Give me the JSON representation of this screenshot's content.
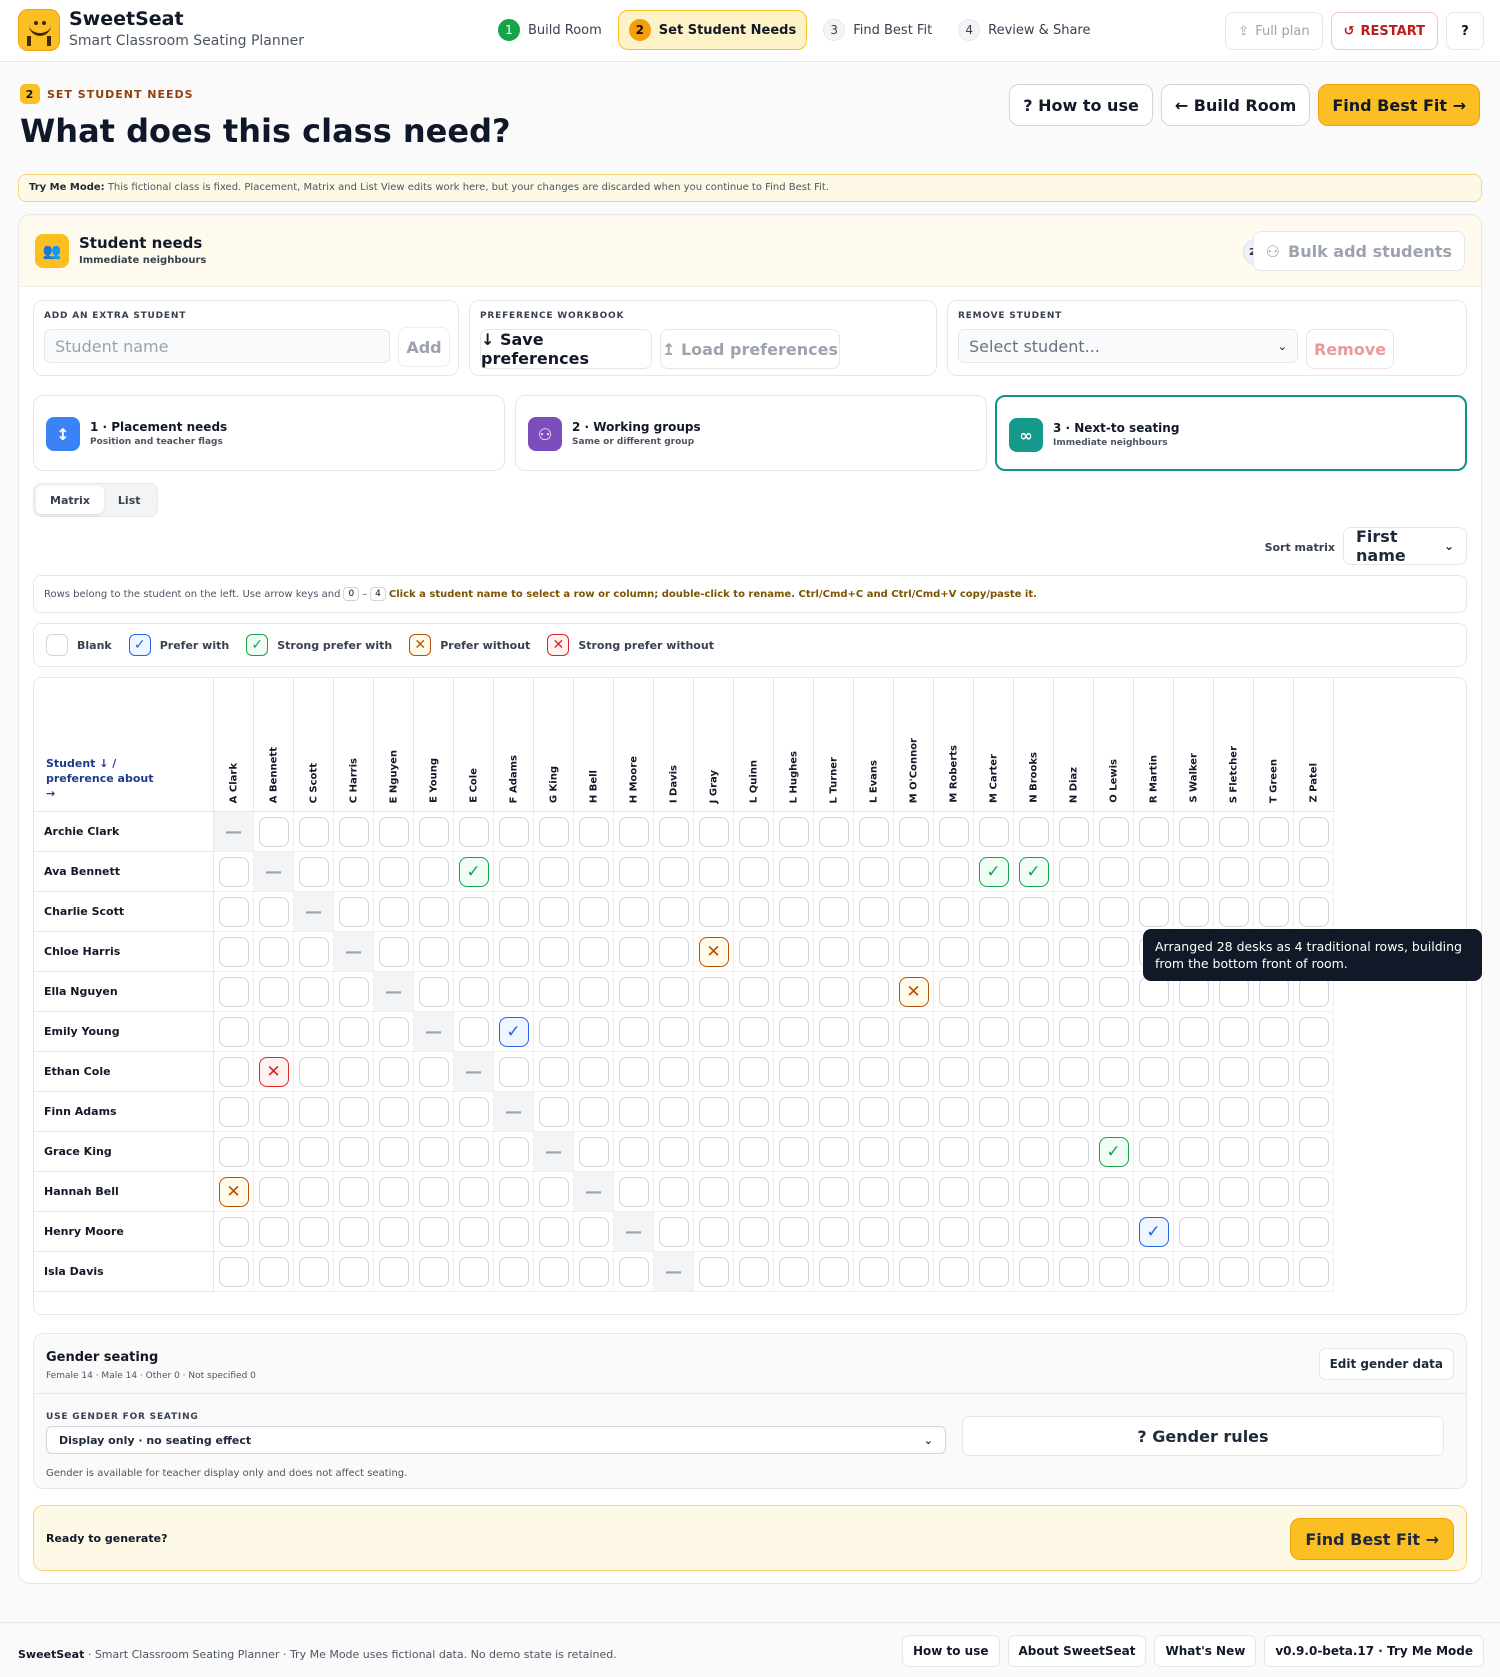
{
  "app": {
    "name": "SweetSeat",
    "tagline": "Smart Classroom Seating Planner"
  },
  "steps": [
    {
      "num": "1",
      "label": "Build Room",
      "state": "done"
    },
    {
      "num": "2",
      "label": "Set Student Needs",
      "state": "active"
    },
    {
      "num": "3",
      "label": "Find Best Fit",
      "state": "todo"
    },
    {
      "num": "4",
      "label": "Review & Share",
      "state": "todo"
    }
  ],
  "header_buttons": {
    "full_plan": "Full plan",
    "restart": "RESTART",
    "help": "?"
  },
  "page": {
    "step_num": "2",
    "eyebrow": "SET STUDENT NEEDS",
    "title": "What does this class need?"
  },
  "top_buttons": {
    "how": "? How to use",
    "back": "← Build Room",
    "next": "Find Best Fit →"
  },
  "notice": {
    "bold": "Try Me Mode:",
    "text": " This fictional class is fixed. Placement, Matrix and List View edits work here, but your changes are discarded when you continue to Find Best Fit."
  },
  "panel": {
    "title": "Student needs",
    "subtitle": "Immediate neighbours",
    "count": "28",
    "bulk": "Bulk add students"
  },
  "add_student": {
    "label": "ADD AN EXTRA STUDENT",
    "placeholder": "Student name",
    "button": "Add"
  },
  "workbook": {
    "label": "PREFERENCE WORKBOOK",
    "save": "↓ Save preferences",
    "load": "↥ Load preferences"
  },
  "remove": {
    "label": "REMOVE STUDENT",
    "placeholder": "Select student...",
    "button": "Remove"
  },
  "sections": [
    {
      "title": "1 · Placement needs",
      "subtitle": "Position and teacher flags",
      "icon": "↕",
      "color": "#3b82f6"
    },
    {
      "title": "2 · Working groups",
      "subtitle": "Same or different group",
      "icon": "⚇",
      "color": "#7c4dbd"
    },
    {
      "title": "3 · Next-to seating",
      "subtitle": "Immediate neighbours",
      "icon": "∞",
      "color": "#14998a"
    }
  ],
  "view_toggle": {
    "matrix": "Matrix",
    "list": "List"
  },
  "sort": {
    "label": "Sort matrix",
    "value": "First name"
  },
  "tip": {
    "text1": "Rows belong to the student on the left. Use arrow keys and",
    "k1": "0",
    "dash": "–",
    "k2": "4",
    "bold": "Click a student name to select a row or column; double-click to rename. Ctrl/Cmd+C and Ctrl/Cmd+V copy/paste it."
  },
  "legend": [
    {
      "label": "Blank",
      "cls": "",
      "glyph": ""
    },
    {
      "label": "Prefer with",
      "cls": "pw",
      "glyph": "✓"
    },
    {
      "label": "Strong prefer with",
      "cls": "sp",
      "glyph": "✓"
    },
    {
      "label": "Prefer without",
      "cls": "pwo",
      "glyph": "✕"
    },
    {
      "label": "Strong prefer without",
      "cls": "spo",
      "glyph": "✕"
    }
  ],
  "matrix": {
    "corner": "Student ↓ / preference about →",
    "columns": [
      "A Clark",
      "A Bennett",
      "C Scott",
      "C Harris",
      "E Nguyen",
      "E Young",
      "E Cole",
      "F Adams",
      "G King",
      "H Bell",
      "H Moore",
      "I Davis",
      "J Gray",
      "L Quinn",
      "L Hughes",
      "L Turner",
      "L Evans",
      "M O'Connor",
      "M Roberts",
      "M Carter",
      "N Brooks",
      "N Diaz",
      "O Lewis",
      "R Martin",
      "S Walker",
      "S Fletcher",
      "T Green",
      "Z Patel"
    ],
    "rows": [
      "Archie Clark",
      "Ava Bennett",
      "Charlie Scott",
      "Chloe Harris",
      "Ella Nguyen",
      "Emily Young",
      "Ethan Cole",
      "Finn Adams",
      "Grace King",
      "Hannah Bell",
      "Henry Moore",
      "Isla Davis"
    ],
    "marks": [
      {
        "row": 1,
        "col": 6,
        "type": "sp"
      },
      {
        "row": 1,
        "col": 19,
        "type": "sp"
      },
      {
        "row": 1,
        "col": 20,
        "type": "sp"
      },
      {
        "row": 3,
        "col": 12,
        "type": "pwo"
      },
      {
        "row": 4,
        "col": 17,
        "type": "pwo"
      },
      {
        "row": 5,
        "col": 7,
        "type": "pw"
      },
      {
        "row": 6,
        "col": 1,
        "type": "spo"
      },
      {
        "row": 8,
        "col": 22,
        "type": "sp"
      },
      {
        "row": 9,
        "col": 0,
        "type": "pwo"
      },
      {
        "row": 10,
        "col": 23,
        "type": "pw"
      }
    ]
  },
  "tooltip": "Arranged 28 desks as 4 traditional rows, building from the bottom front of room.",
  "gender": {
    "title": "Gender seating",
    "summary": "Female 14 · Male 14 · Other 0 · Not specified 0",
    "edit": "Edit gender data",
    "use_label": "USE GENDER FOR SEATING",
    "select": "Display only · no seating effect",
    "rules": "? Gender rules",
    "note": "Gender is available for teacher display only and does not affect seating."
  },
  "ready": {
    "text": "Ready to generate?",
    "button": "Find Best Fit →"
  },
  "footer": {
    "brand": "SweetSeat",
    "text": " · Smart Classroom Seating Planner · Try Me Mode uses fictional data. No demo state is retained.",
    "links": [
      "How to use",
      "About SweetSeat",
      "What's New",
      "v0.9.0-beta.17 · Try Me Mode"
    ]
  }
}
